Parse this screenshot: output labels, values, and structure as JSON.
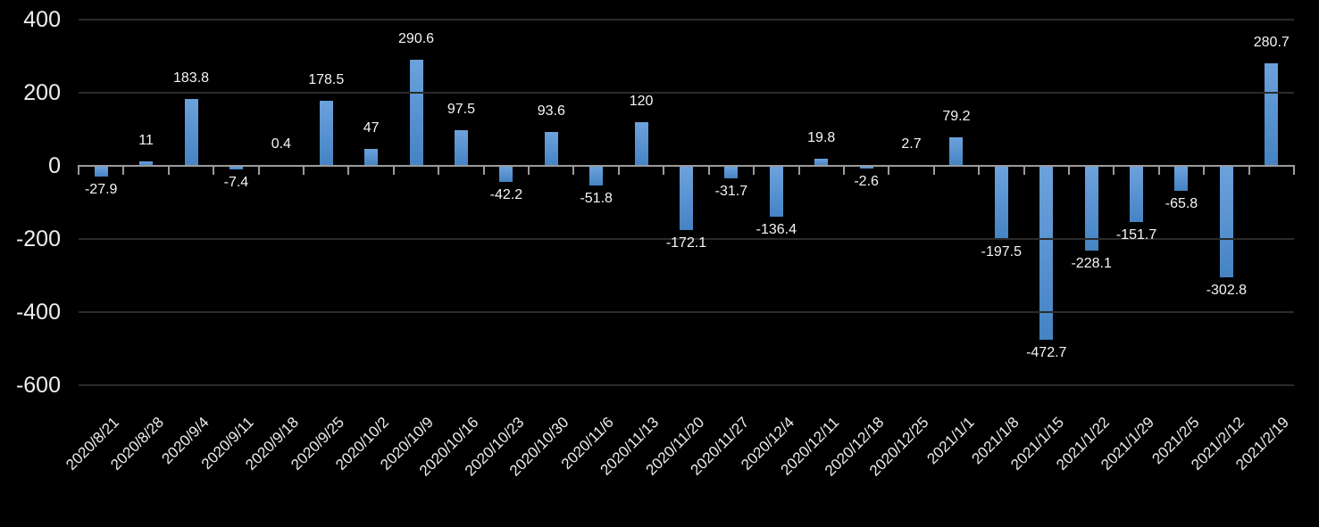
{
  "chart_data": {
    "type": "bar",
    "title": "",
    "categories": [
      "2020/8/21",
      "2020/8/28",
      "2020/9/4",
      "2020/9/11",
      "2020/9/18",
      "2020/9/25",
      "2020/10/2",
      "2020/10/9",
      "2020/10/16",
      "2020/10/23",
      "2020/10/30",
      "2020/11/6",
      "2020/11/13",
      "2020/11/20",
      "2020/11/27",
      "2020/12/4",
      "2020/12/11",
      "2020/12/18",
      "2020/12/25",
      "2021/1/1",
      "2021/1/8",
      "2021/1/15",
      "2021/1/22",
      "2021/1/29",
      "2021/2/5",
      "2021/2/12",
      "2021/2/19"
    ],
    "values": [
      -27.9,
      11,
      183.8,
      -7.4,
      0.4,
      178.5,
      47,
      290.6,
      97.5,
      -42.2,
      93.6,
      -51.8,
      120,
      -172.1,
      -31.7,
      -136.4,
      19.8,
      -2.6,
      2.7,
      79.2,
      -197.5,
      -472.7,
      -228.1,
      -151.7,
      -65.8,
      -302.8,
      280.7
    ],
    "value_labels": [
      "-27.9",
      "11",
      "183.8",
      "-7.4",
      "0.4",
      "178.5",
      "47",
      "290.6",
      "97.5",
      "-42.2",
      "93.6",
      "-51.8",
      "120",
      "-172.1",
      "-31.7",
      "-136.4",
      "19.8",
      "-2.6",
      "2.7",
      "79.2",
      "-197.5",
      "-472.7",
      "-228.1",
      "-151.7",
      "-65.8",
      "-302.8",
      "280.7"
    ],
    "xlabel": "",
    "ylabel": "",
    "y_ticks": [
      400,
      200,
      0,
      -200,
      -400,
      -600
    ],
    "y_tick_labels": [
      "400",
      "200",
      "0",
      "-200",
      "-400",
      "-600"
    ],
    "ylim": [
      -600,
      400
    ],
    "grid": "horizontal",
    "legend": "none",
    "colors": {
      "background": "#000000",
      "bar_gradient_top": "#6CA2DC",
      "bar_gradient_bottom": "#4583C4",
      "gridline": "#2B2B2B",
      "axis_line": "#9B9B9B",
      "value_label_text": "#F5F5F5",
      "axis_label_text": "#EDEDED"
    }
  }
}
